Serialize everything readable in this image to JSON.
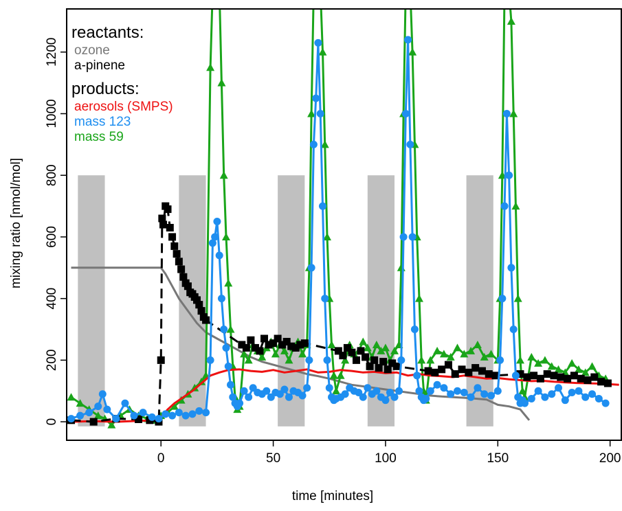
{
  "chart_data": {
    "type": "line",
    "xlabel": "time [minutes]",
    "ylabel": "mixing ratio [nmol/mol]",
    "xlim": [
      -42,
      205
    ],
    "ylim": [
      -60,
      1340
    ],
    "x_ticks": [
      0,
      50,
      100,
      150,
      200
    ],
    "y_ticks": [
      0,
      200,
      400,
      600,
      800,
      1000,
      1200
    ],
    "grid": false,
    "legend": {
      "position": "top-left",
      "groups": [
        {
          "title": "reactants:",
          "entries": [
            {
              "label": "ozone",
              "color": "#777777"
            },
            {
              "label": "a-pinene",
              "color": "#000000"
            }
          ]
        },
        {
          "title": "products:",
          "entries": [
            {
              "label": "aerosols (SMPS)",
              "color": "#ee1111"
            },
            {
              "label": "mass 123",
              "color": "#1e8ef0"
            },
            {
              "label": "mass 59",
              "color": "#1aa51a"
            }
          ]
        }
      ]
    },
    "shaded_intervals": {
      "color": "#c0c0c0",
      "y_range": [
        -15,
        800
      ],
      "intervals": [
        [
          -37,
          -25
        ],
        [
          8,
          20
        ],
        [
          52,
          64
        ],
        [
          92,
          104
        ],
        [
          136,
          148
        ]
      ]
    },
    "series": [
      {
        "name": "ozone",
        "style": "line",
        "color": "#777777",
        "x": [
          -40,
          -1,
          0,
          2,
          5,
          8,
          12,
          16,
          20,
          25,
          30,
          35,
          40,
          45,
          50,
          55,
          60,
          65,
          70,
          75,
          80,
          85,
          90,
          95,
          100,
          105,
          110,
          115,
          120,
          125,
          130,
          135,
          140,
          145,
          150,
          155,
          160,
          164
        ],
        "y": [
          500,
          500,
          500,
          480,
          440,
          400,
          360,
          320,
          290,
          270,
          250,
          230,
          210,
          195,
          185,
          175,
          165,
          155,
          148,
          140,
          130,
          120,
          115,
          110,
          105,
          100,
          95,
          90,
          85,
          82,
          80,
          78,
          75,
          72,
          55,
          50,
          40,
          5
        ]
      },
      {
        "name": "a-pinene",
        "style": "line+square",
        "color": "#000000",
        "x": [
          -40,
          -30,
          -20,
          -10,
          -5,
          -1,
          0,
          0.5,
          1,
          2,
          3,
          4,
          5,
          6,
          7,
          8,
          9,
          10,
          11,
          12,
          13,
          14,
          15,
          16,
          17,
          18,
          19,
          20,
          36,
          38,
          40,
          42,
          44,
          46,
          48,
          50,
          52,
          54,
          56,
          58,
          60,
          62,
          64,
          79,
          81,
          83,
          85,
          87,
          89,
          91,
          93,
          95,
          97,
          99,
          101,
          103,
          105,
          119,
          122,
          125,
          128,
          131,
          134,
          137,
          140,
          143,
          146,
          149,
          160,
          163,
          166,
          169,
          172,
          175,
          178,
          181,
          184,
          187,
          190,
          193,
          196,
          199
        ],
        "y": [
          5,
          0,
          10,
          8,
          5,
          0,
          200,
          660,
          640,
          700,
          690,
          630,
          600,
          570,
          545,
          520,
          495,
          470,
          450,
          440,
          420,
          415,
          405,
          395,
          380,
          360,
          340,
          330,
          250,
          240,
          265,
          240,
          230,
          270,
          250,
          255,
          270,
          250,
          260,
          245,
          240,
          250,
          255,
          230,
          215,
          240,
          225,
          200,
          230,
          210,
          180,
          200,
          175,
          195,
          170,
          190,
          180,
          165,
          160,
          170,
          185,
          155,
          170,
          160,
          175,
          165,
          155,
          150,
          155,
          145,
          150,
          140,
          155,
          150,
          145,
          140,
          150,
          140,
          135,
          145,
          130,
          125
        ]
      },
      {
        "name": "aerosols (SMPS)",
        "style": "line",
        "color": "#ee1111",
        "x": [
          -40,
          -30,
          -20,
          -10,
          -1,
          0,
          3,
          6,
          10,
          14,
          18,
          22,
          26,
          30,
          35,
          40,
          45,
          50,
          55,
          60,
          65,
          70,
          75,
          80,
          85,
          90,
          95,
          100,
          105,
          110,
          115,
          120,
          125,
          130,
          135,
          140,
          145,
          150,
          155,
          160,
          165,
          170,
          175,
          180,
          185,
          190,
          195,
          200,
          204
        ],
        "y": [
          0,
          2,
          0,
          3,
          5,
          15,
          40,
          60,
          80,
          100,
          125,
          150,
          160,
          168,
          170,
          165,
          162,
          168,
          160,
          165,
          170,
          160,
          162,
          168,
          165,
          160,
          162,
          158,
          160,
          150,
          155,
          150,
          148,
          145,
          150,
          145,
          140,
          142,
          138,
          135,
          132,
          133,
          130,
          128,
          126,
          125,
          124,
          122,
          120
        ]
      },
      {
        "name": "mass 123",
        "style": "line+circle",
        "color": "#1e8ef0",
        "x": [
          -40,
          -36,
          -32,
          -28,
          -26,
          -24,
          -20,
          -16,
          -12,
          -8,
          -4,
          -1,
          2,
          5,
          8,
          11,
          14,
          17,
          20,
          22,
          23,
          24,
          25,
          26,
          27,
          28,
          29,
          30,
          31,
          32,
          33,
          34,
          35,
          37,
          39,
          41,
          43,
          45,
          47,
          49,
          51,
          53,
          55,
          57,
          59,
          61,
          63,
          65,
          66,
          67,
          68,
          69,
          70,
          71,
          72,
          73,
          74,
          75,
          76,
          77,
          78,
          80,
          82,
          84,
          86,
          88,
          90,
          92,
          94,
          96,
          98,
          100,
          102,
          104,
          106,
          107,
          108,
          109,
          110,
          111,
          112,
          113,
          114,
          115,
          116,
          117,
          118,
          120,
          123,
          126,
          129,
          132,
          135,
          138,
          141,
          144,
          147,
          150,
          151,
          152,
          153,
          154,
          155,
          156,
          157,
          158,
          159,
          160,
          161,
          162,
          165,
          168,
          171,
          174,
          177,
          180,
          183,
          186,
          189,
          192,
          195,
          198
        ],
        "y": [
          10,
          20,
          30,
          50,
          90,
          40,
          10,
          60,
          20,
          30,
          15,
          10,
          25,
          20,
          30,
          20,
          25,
          35,
          30,
          200,
          580,
          600,
          650,
          540,
          400,
          300,
          240,
          180,
          120,
          80,
          60,
          50,
          60,
          100,
          80,
          110,
          95,
          90,
          100,
          80,
          95,
          90,
          105,
          80,
          100,
          95,
          85,
          110,
          200,
          500,
          900,
          1050,
          1230,
          1000,
          700,
          400,
          200,
          110,
          80,
          70,
          75,
          80,
          90,
          110,
          100,
          95,
          80,
          110,
          90,
          100,
          80,
          70,
          95,
          80,
          100,
          200,
          600,
          1000,
          1240,
          900,
          600,
          300,
          150,
          100,
          80,
          70,
          75,
          100,
          120,
          110,
          90,
          100,
          95,
          80,
          110,
          90,
          85,
          100,
          200,
          400,
          700,
          1000,
          800,
          500,
          300,
          150,
          80,
          60,
          70,
          60,
          75,
          100,
          80,
          90,
          110,
          70,
          95,
          100,
          80,
          90,
          75,
          60
        ]
      },
      {
        "name": "mass 59",
        "style": "line+triangle",
        "color": "#1aa51a",
        "x": [
          -40,
          -36,
          -32,
          -28,
          -25,
          -22,
          -18,
          -14,
          -10,
          -6,
          -2,
          0,
          3,
          6,
          9,
          12,
          15,
          18,
          20,
          22,
          23,
          24,
          25,
          26,
          27,
          28,
          29,
          30,
          31,
          32,
          33,
          34,
          35,
          37,
          39,
          41,
          43,
          45,
          47,
          49,
          51,
          53,
          55,
          57,
          59,
          61,
          63,
          65,
          66,
          67,
          68,
          69,
          70,
          71,
          72,
          73,
          74,
          75,
          76,
          77,
          78,
          80,
          82,
          84,
          86,
          88,
          90,
          92,
          94,
          96,
          98,
          100,
          102,
          104,
          106,
          107,
          108,
          109,
          110,
          111,
          112,
          113,
          114,
          115,
          116,
          117,
          118,
          120,
          123,
          126,
          129,
          132,
          135,
          138,
          141,
          144,
          147,
          150,
          151,
          152,
          153,
          154,
          155,
          156,
          157,
          158,
          159,
          160,
          161,
          162,
          165,
          168,
          171,
          174,
          177,
          180,
          183,
          186,
          189,
          192,
          195,
          198
        ],
        "y": [
          80,
          60,
          40,
          20,
          10,
          -10,
          20,
          40,
          20,
          10,
          5,
          20,
          30,
          50,
          70,
          90,
          110,
          130,
          150,
          1150,
          1400,
          1400,
          1400,
          1400,
          1100,
          800,
          600,
          450,
          300,
          180,
          80,
          40,
          50,
          220,
          200,
          250,
          230,
          210,
          240,
          260,
          220,
          250,
          230,
          200,
          240,
          260,
          220,
          250,
          500,
          1000,
          1400,
          1400,
          1400,
          1400,
          1200,
          900,
          600,
          400,
          250,
          150,
          100,
          150,
          200,
          250,
          220,
          230,
          260,
          240,
          210,
          250,
          230,
          240,
          200,
          230,
          250,
          500,
          1000,
          1400,
          1400,
          1400,
          1200,
          900,
          600,
          400,
          200,
          100,
          70,
          200,
          230,
          220,
          210,
          240,
          220,
          230,
          250,
          210,
          220,
          200,
          400,
          800,
          1400,
          1400,
          1400,
          1300,
          1000,
          700,
          400,
          200,
          100,
          80,
          210,
          190,
          200,
          180,
          170,
          160,
          190,
          170,
          160,
          180,
          150,
          140
        ]
      }
    ]
  }
}
